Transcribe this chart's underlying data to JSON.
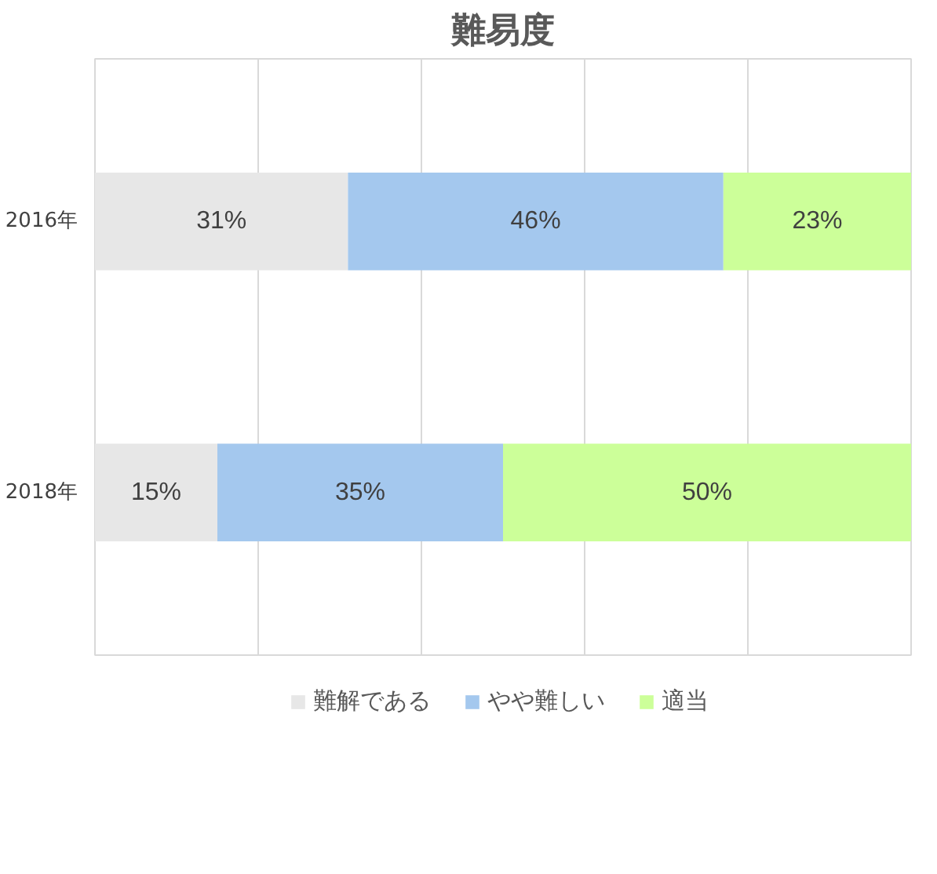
{
  "chart_data": {
    "type": "bar",
    "orientation": "horizontal",
    "stacked": true,
    "title": "難易度",
    "categories": [
      "2016年",
      "2018年"
    ],
    "series": [
      {
        "name": "難解である",
        "color": "#e7e7e7",
        "values": [
          31,
          15
        ],
        "value_labels": [
          "31%",
          "15%"
        ]
      },
      {
        "name": "やや難しい",
        "color": "#a4c8ee",
        "values": [
          46,
          35
        ],
        "value_labels": [
          "46%",
          "35%"
        ]
      },
      {
        "name": "適当",
        "color": "#ccff99",
        "values": [
          23,
          50
        ],
        "value_labels": [
          "23%",
          "50%"
        ]
      }
    ],
    "grid": "x",
    "tick_labels": "y",
    "legend": "bottom"
  }
}
